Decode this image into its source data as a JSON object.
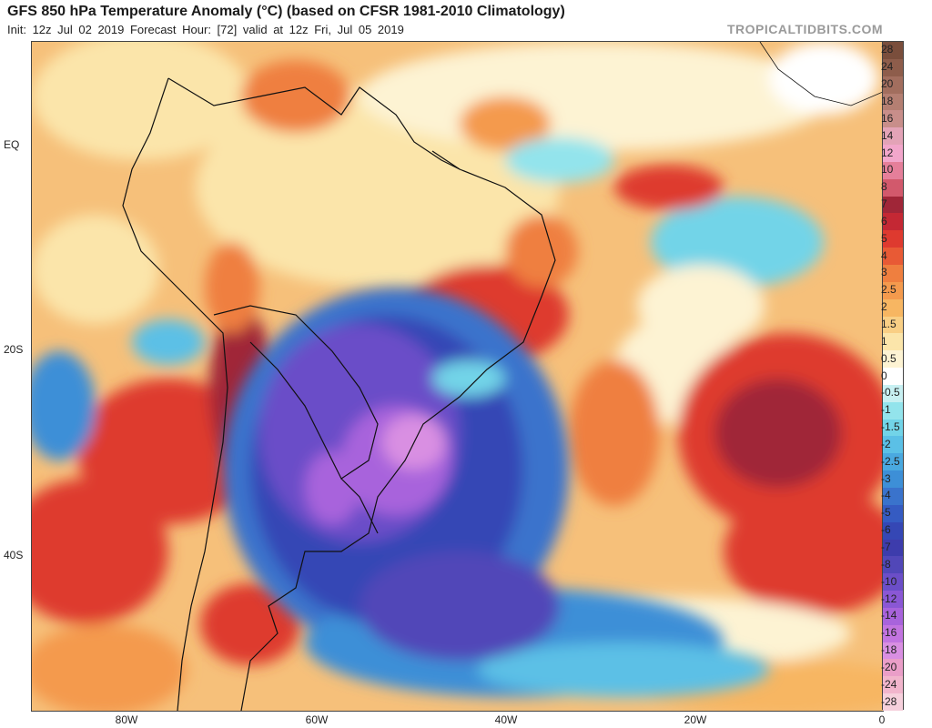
{
  "header": {
    "title": "GFS 850 hPa Temperature Anomaly (°C) (based on CFSR 1981-2010 Climatology)",
    "subtitle": "Init: 12z Jul 02 2019   Forecast Hour: [72]   valid at 12z Fri, Jul 05 2019",
    "brand": "TROPICALTIDBITS.COM"
  },
  "map": {
    "lat_labels": [
      "EQ",
      "20S",
      "40S"
    ],
    "lon_labels": [
      "80W",
      "60W",
      "40W",
      "20W",
      "0"
    ]
  },
  "colorbar": {
    "labels": [
      "28",
      "24",
      "20",
      "18",
      "16",
      "14",
      "12",
      "10",
      "8",
      "7",
      "6",
      "5",
      "4",
      "3",
      "2.5",
      "2",
      "1.5",
      "1",
      "0.5",
      "0",
      "-0.5",
      "-1",
      "-1.5",
      "-2",
      "-2.5",
      "-3",
      "-4",
      "-5",
      "-6",
      "-7",
      "-8",
      "-10",
      "-12",
      "-14",
      "-16",
      "-18",
      "-20",
      "-24",
      "-28"
    ],
    "colors": [
      "#7a4e3c",
      "#8e5d4b",
      "#a26e5e",
      "#b47f72",
      "#c88e8a",
      "#e3a3b7",
      "#f2a6cb",
      "#e57f9a",
      "#d2596c",
      "#a02638",
      "#c42834",
      "#de3a2f",
      "#e85a35",
      "#ef7f3f",
      "#f49a4d",
      "#f7b662",
      "#f9cf85",
      "#fbe5aa",
      "#fdf3d3",
      "#ffffff",
      "#c8f0f2",
      "#93e4ec",
      "#72d4e8",
      "#5bc0e6",
      "#4aa9e0",
      "#3d8fd7",
      "#3a73cc",
      "#355bc2",
      "#3547b5",
      "#3d3cac",
      "#5147b8",
      "#6b4ec8",
      "#8a57d5",
      "#a863dc",
      "#c274e0",
      "#d98fe2",
      "#ea9ec8",
      "#f1b5cc",
      "#f6d0dc"
    ],
    "tick_values": [
      "28",
      "24",
      "20",
      "18",
      "16",
      "14",
      "12",
      "10",
      "8",
      "7",
      "6",
      "5",
      "4",
      "3",
      "2.5",
      "2",
      "1.5",
      "1",
      "0.5",
      "0",
      "-0.5",
      "-1",
      "-1.5",
      "-2",
      "-2.5",
      "-3",
      "-4",
      "-5",
      "-6",
      "-7",
      "-8",
      "-10",
      "-12",
      "-14",
      "-16",
      "-18",
      "-20",
      "-24",
      "-28"
    ]
  }
}
